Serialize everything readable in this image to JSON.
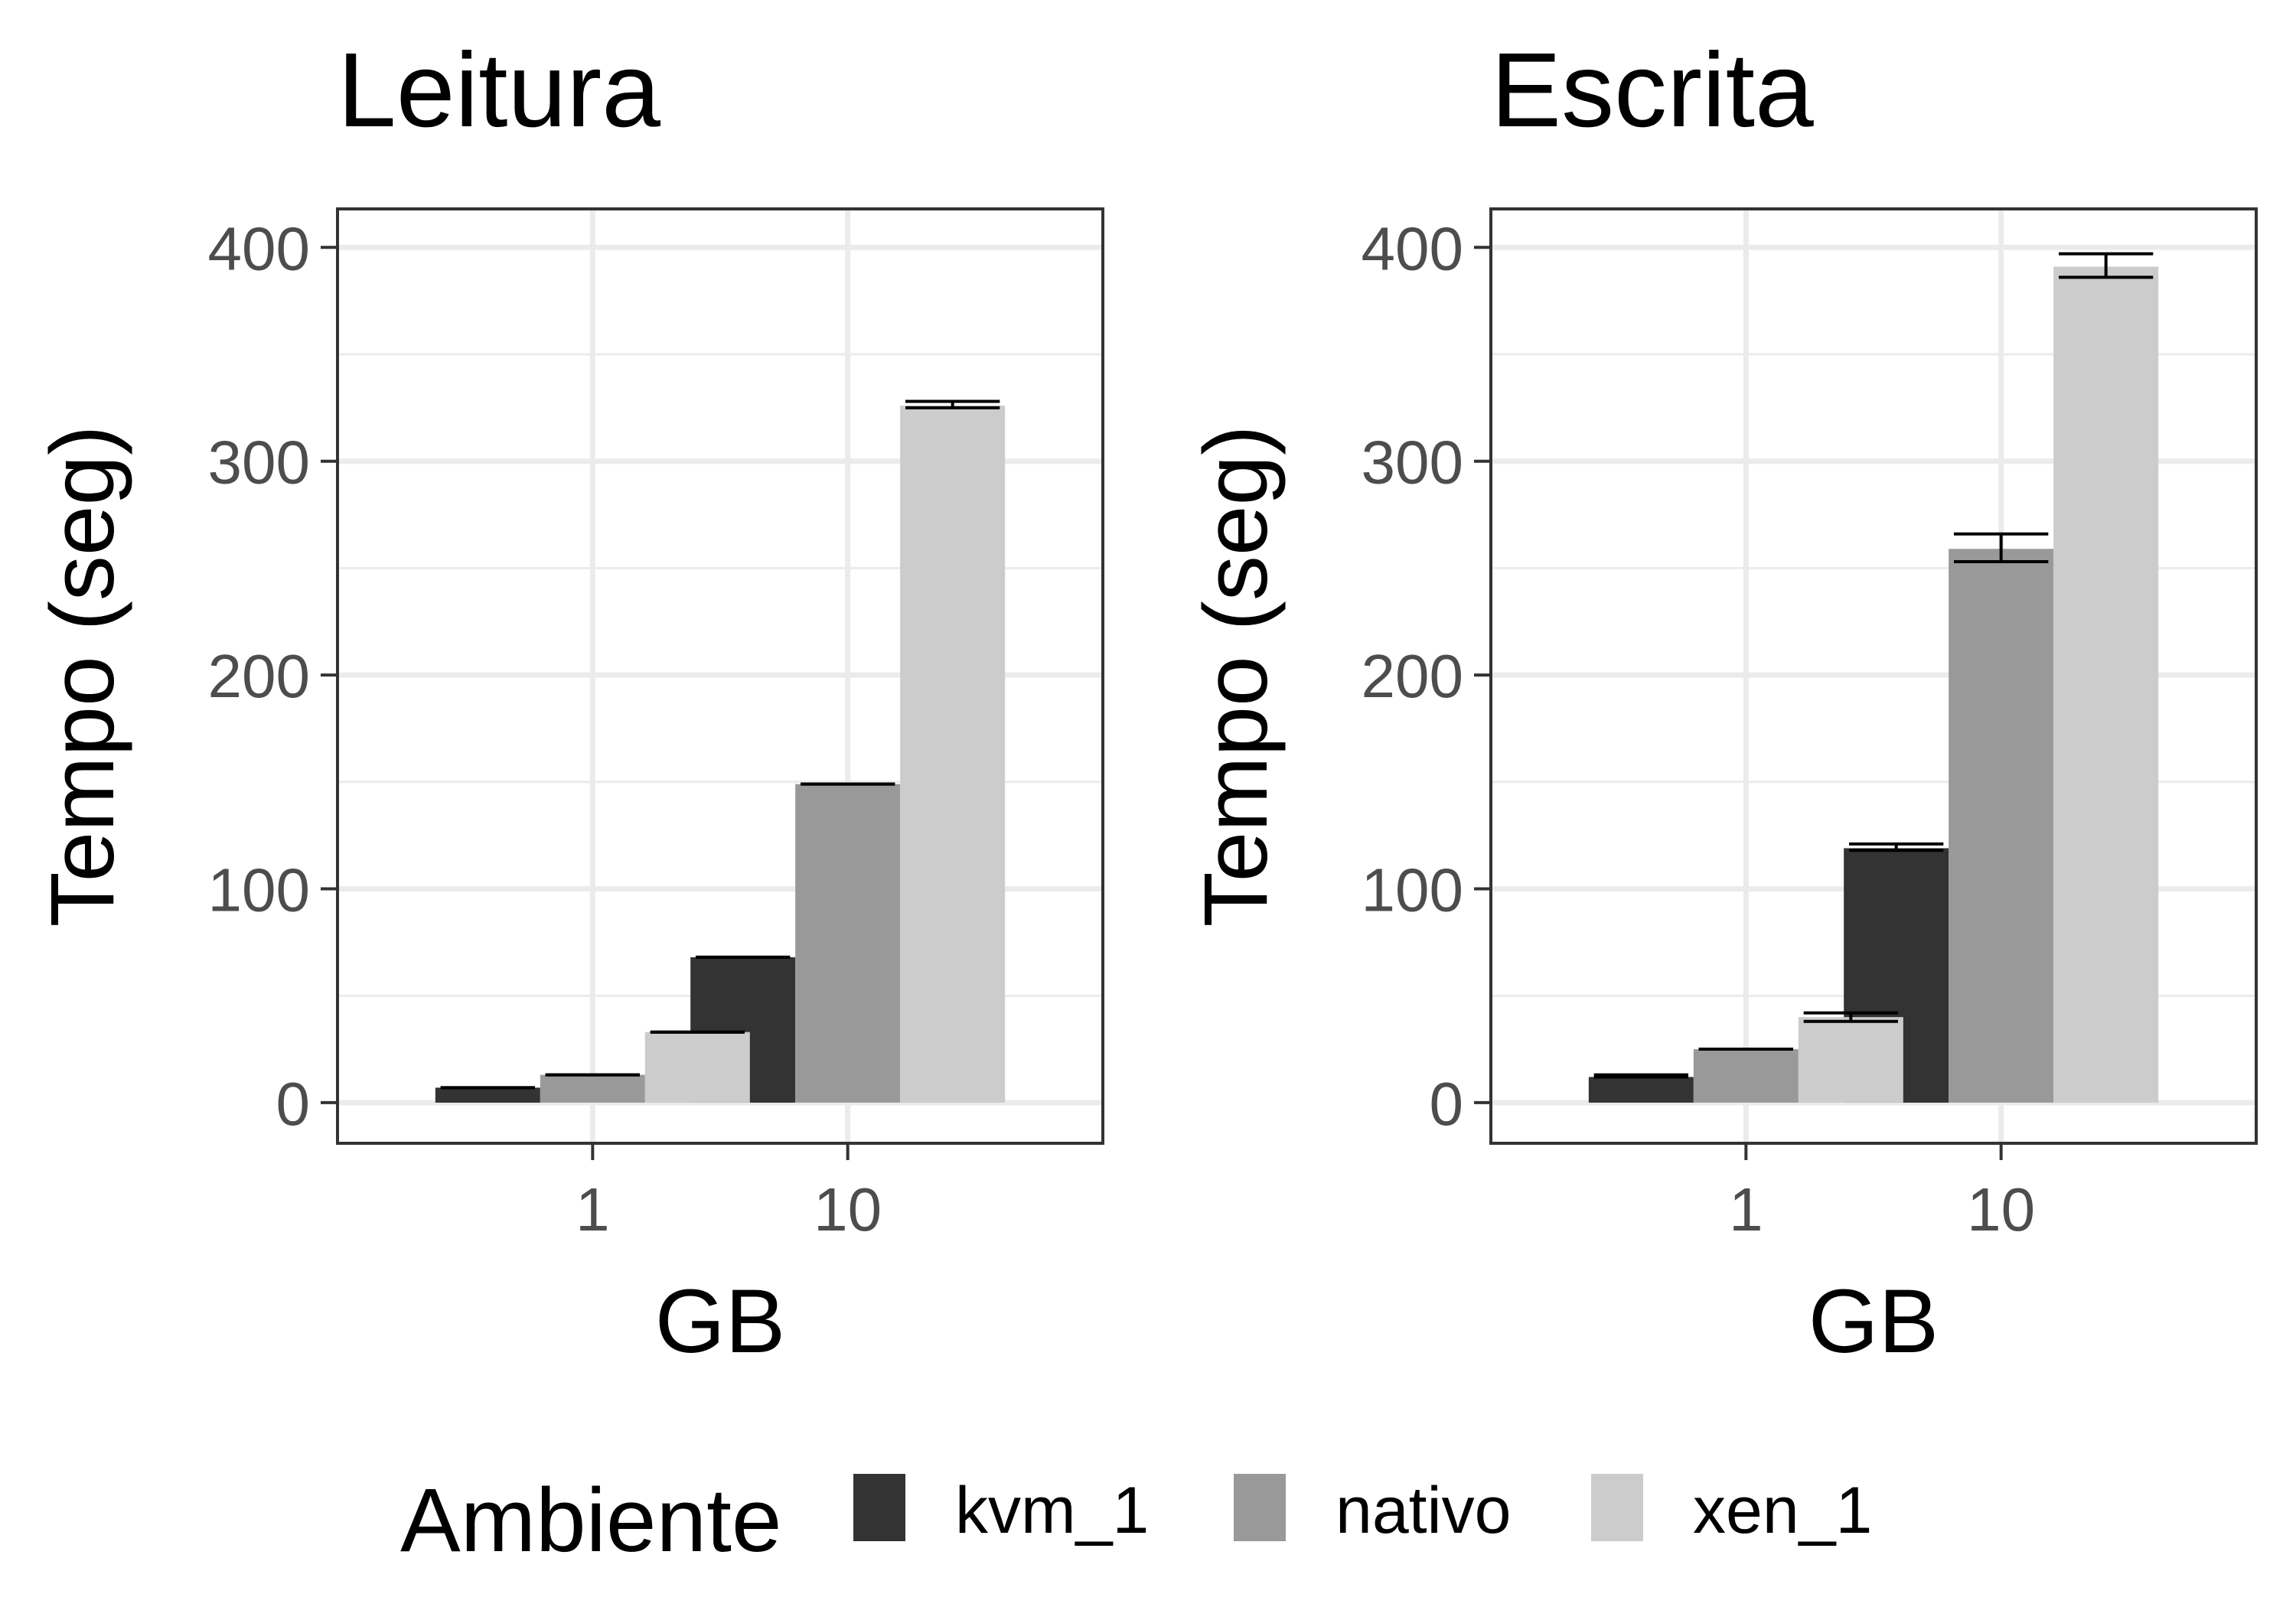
{
  "chart_data": [
    {
      "type": "bar",
      "title": "Leitura",
      "xlabel": "GB",
      "ylabel": "Tempo (seg)",
      "categories": [
        "1",
        "10"
      ],
      "ylim": [
        -19,
        418
      ],
      "yticks": [
        0,
        100,
        200,
        300,
        400
      ],
      "grid": true,
      "series": [
        {
          "name": "kvm_1",
          "values": [
            7,
            68
          ],
          "err_low": [
            7,
            68
          ],
          "err_high": [
            7,
            68
          ]
        },
        {
          "name": "nativo",
          "values": [
            13,
            149
          ],
          "err_low": [
            13,
            149
          ],
          "err_high": [
            13,
            149
          ]
        },
        {
          "name": "xen_1",
          "values": [
            33,
            326
          ],
          "err_low": [
            33,
            325
          ],
          "err_high": [
            33,
            328
          ]
        }
      ]
    },
    {
      "type": "bar",
      "title": "Escrita",
      "xlabel": "GB",
      "ylabel": "Tempo (seg)",
      "categories": [
        "1",
        "10"
      ],
      "ylim": [
        -19,
        418
      ],
      "yticks": [
        0,
        100,
        200,
        300,
        400
      ],
      "grid": true,
      "series": [
        {
          "name": "kvm_1",
          "values": [
            12,
            119
          ],
          "err_low": [
            12,
            118
          ],
          "err_high": [
            13,
            121
          ]
        },
        {
          "name": "nativo",
          "values": [
            25,
            259
          ],
          "err_low": [
            25,
            253
          ],
          "err_high": [
            25,
            266
          ]
        },
        {
          "name": "xen_1",
          "values": [
            40,
            391
          ],
          "err_low": [
            38,
            386
          ],
          "err_high": [
            42,
            397
          ]
        }
      ]
    }
  ],
  "legend": {
    "title": "Ambiente",
    "position": "bottom",
    "items": [
      {
        "label": "kvm_1",
        "color": "#333333"
      },
      {
        "label": "nativo",
        "color": "#999999"
      },
      {
        "label": "xen_1",
        "color": "#cccccc"
      }
    ]
  },
  "colors": {
    "panel_border": "#333333",
    "grid": "#ebebeb",
    "tick_text": "#4d4d4d",
    "error_bar": "#000000"
  }
}
